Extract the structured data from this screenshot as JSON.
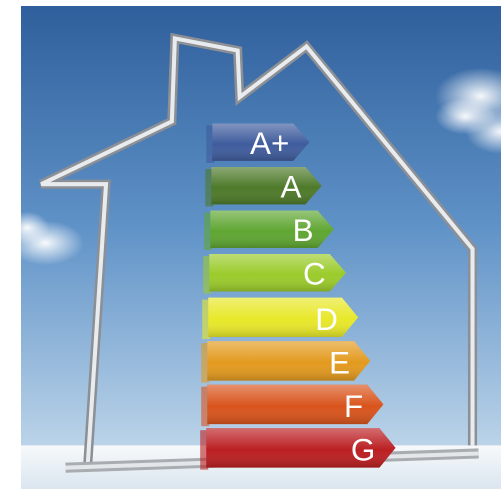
{
  "image": {
    "subject": "energy efficiency rating bars inside house outline",
    "bars": [
      {
        "label": "A+",
        "color": "#3F5C9D"
      },
      {
        "label": "A",
        "color": "#4E7A2A"
      },
      {
        "label": "B",
        "color": "#5FA632"
      },
      {
        "label": "C",
        "color": "#9BCB2B"
      },
      {
        "label": "D",
        "color": "#E8E82A"
      },
      {
        "label": "E",
        "color": "#E39A1E"
      },
      {
        "label": "F",
        "color": "#D9541C"
      },
      {
        "label": "G",
        "color": "#BB1F22"
      }
    ]
  }
}
